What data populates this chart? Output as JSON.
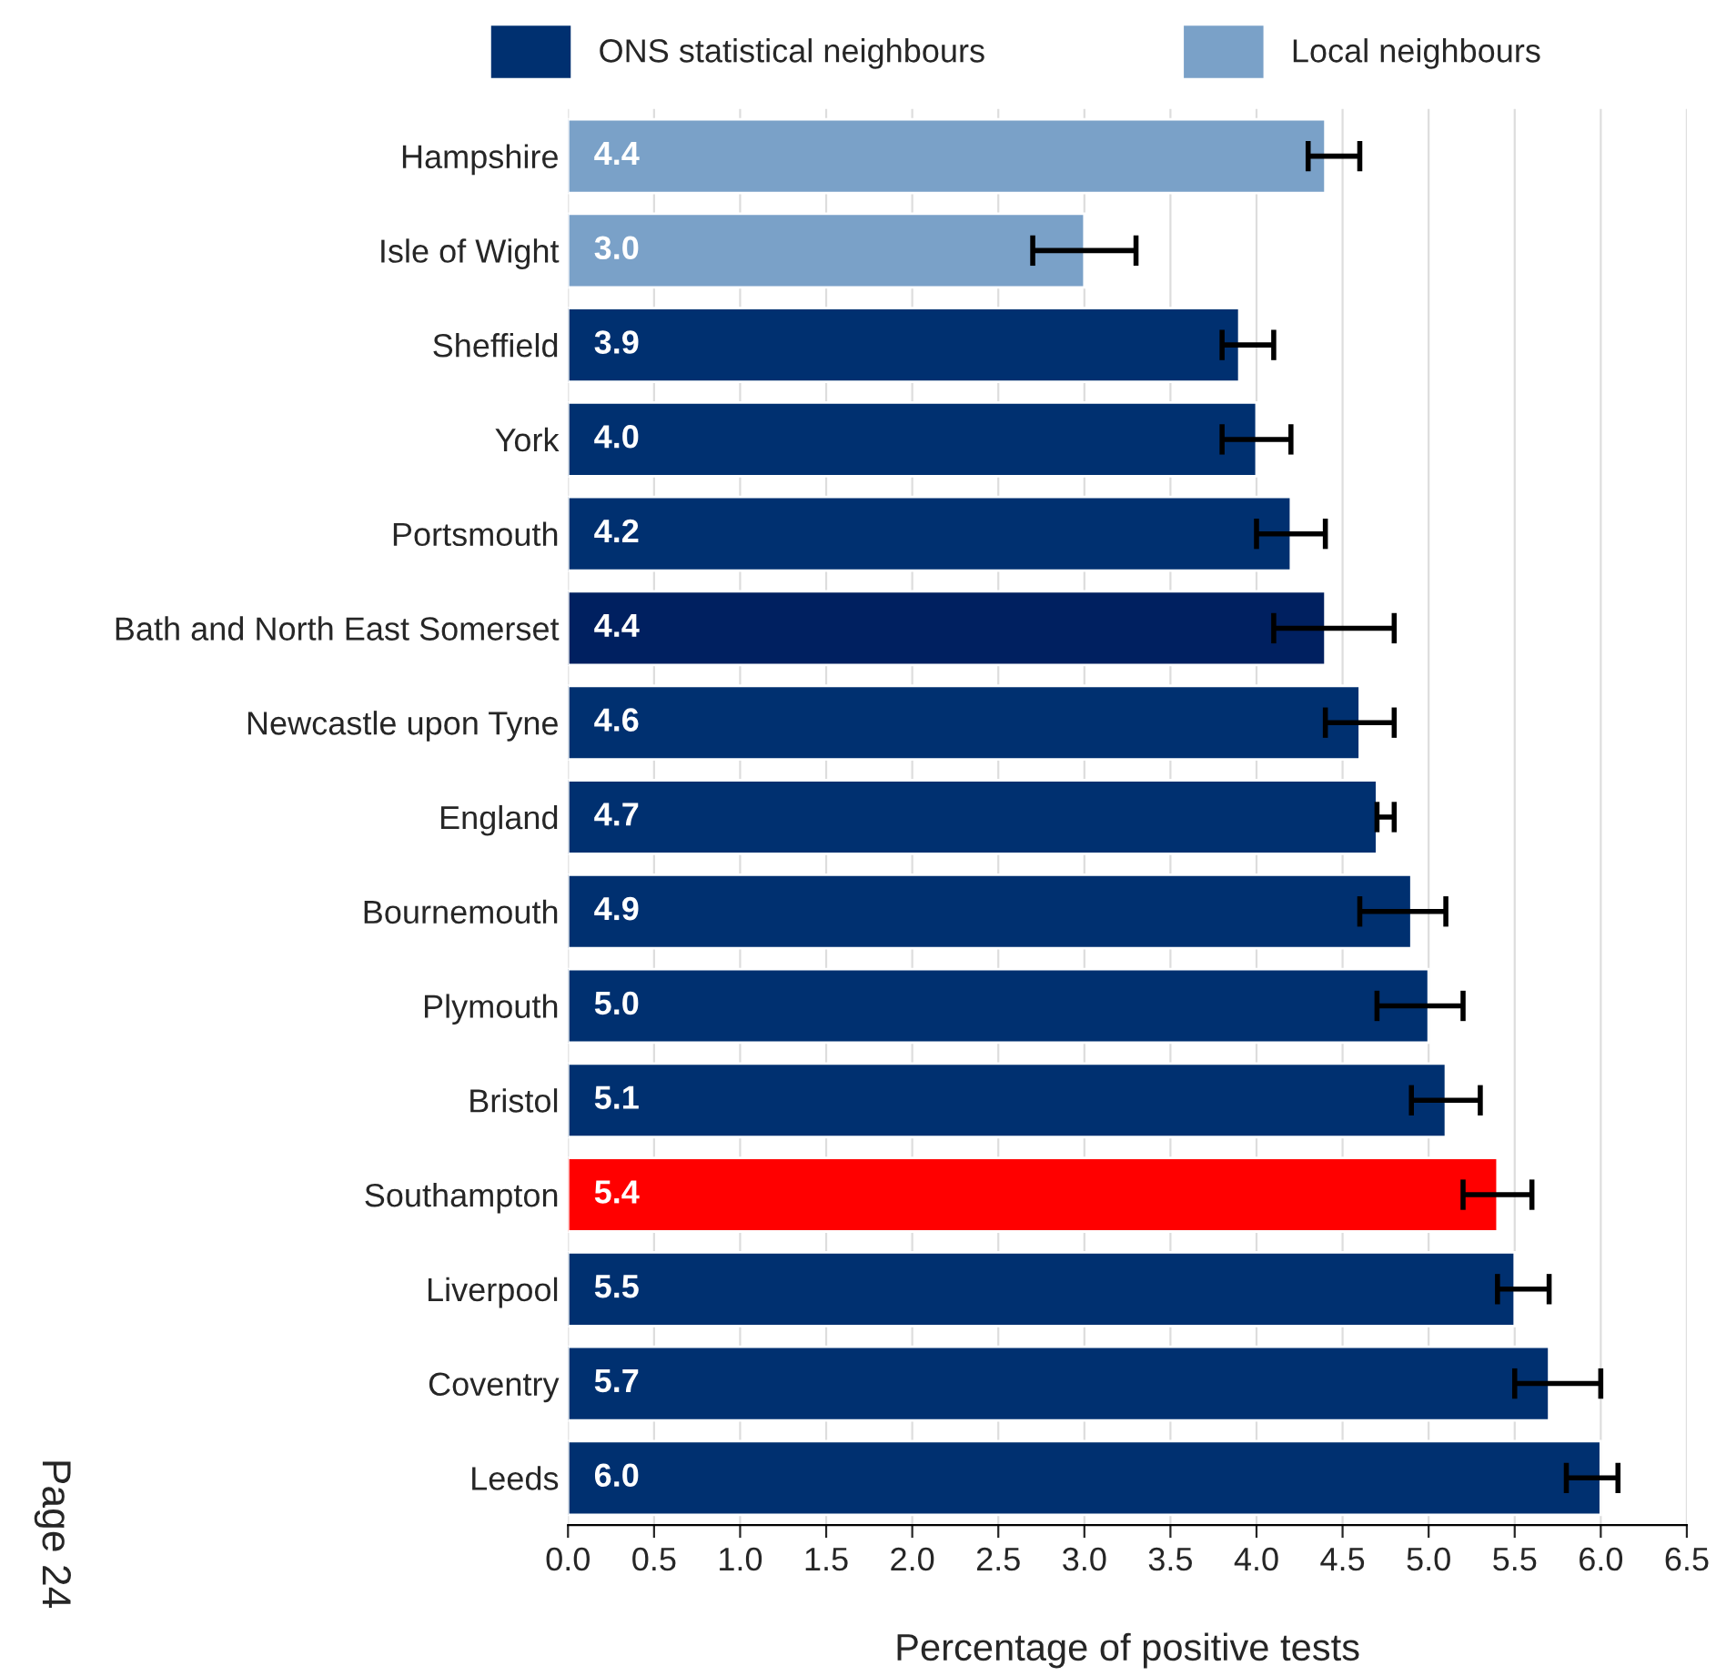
{
  "chart_data": {
    "type": "bar",
    "orientation": "horizontal",
    "xlabel": "Percentage of positive tests",
    "categories": [
      "Hampshire",
      "Isle of Wight",
      "Sheffield",
      "York",
      "Portsmouth",
      "Bath and North East Somerset",
      "Newcastle upon Tyne",
      "England",
      "Bournemouth",
      "Plymouth",
      "Bristol",
      "Southampton",
      "Liverpool",
      "Coventry",
      "Leeds"
    ],
    "series": [
      {
        "name": "ONS statistical neighbours",
        "color": "#003070",
        "colors": [
          null,
          null,
          "#003070",
          "#003070",
          "#003070",
          "#002060",
          "#003070",
          "#003070",
          "#003070",
          "#003070",
          "#003070",
          "#ff0000",
          "#003070",
          "#003070",
          "#003070"
        ],
        "values": [
          null,
          null,
          3.9,
          4.0,
          4.2,
          4.4,
          4.6,
          4.7,
          4.9,
          5.0,
          5.1,
          5.4,
          5.5,
          5.7,
          6.0
        ],
        "value_labels": [
          null,
          null,
          "3.9",
          "4.0",
          "4.2",
          "4.4",
          "4.6",
          "4.7",
          "4.9",
          "5.0",
          "5.1",
          "5.4",
          "5.5",
          "5.7",
          "6.0"
        ],
        "errors": [
          null,
          null,
          [
            3.8,
            4.1
          ],
          [
            3.8,
            4.2
          ],
          [
            4.0,
            4.4
          ],
          [
            4.1,
            4.8
          ],
          [
            4.4,
            4.8
          ],
          [
            4.7,
            4.8
          ],
          [
            4.6,
            5.1
          ],
          [
            4.7,
            5.2
          ],
          [
            4.9,
            5.3
          ],
          [
            5.2,
            5.6
          ],
          [
            5.4,
            5.7
          ],
          [
            5.5,
            6.0
          ],
          [
            5.8,
            6.1
          ]
        ]
      },
      {
        "name": "Local neighbours",
        "color": "#7aa1c8",
        "values": [
          4.4,
          3.0,
          null,
          null,
          null,
          null,
          null,
          null,
          null,
          null,
          null,
          null,
          null,
          null,
          null
        ],
        "value_labels": [
          "4.4",
          "3.0",
          null,
          null,
          null,
          null,
          null,
          null,
          null,
          null,
          null,
          null,
          null,
          null,
          null
        ],
        "errors": [
          [
            4.3,
            4.6
          ],
          [
            2.7,
            3.3
          ],
          null,
          null,
          null,
          null,
          null,
          null,
          null,
          null,
          null,
          null,
          null,
          null,
          null
        ]
      }
    ],
    "xlim": [
      0,
      6.5
    ],
    "xticks": [
      {
        "value": 0,
        "label": "0.0"
      },
      {
        "value": 0.5,
        "label": "0.5"
      },
      {
        "value": 1,
        "label": "1.0"
      },
      {
        "value": 1.5,
        "label": "1.5"
      },
      {
        "value": 2,
        "label": "2.0"
      },
      {
        "value": 2.5,
        "label": "2.5"
      },
      {
        "value": 3,
        "label": "3.0"
      },
      {
        "value": 3.5,
        "label": "3.5"
      },
      {
        "value": 4,
        "label": "4.0"
      },
      {
        "value": 4.5,
        "label": "4.5"
      },
      {
        "value": 5,
        "label": "5.0"
      },
      {
        "value": 5.5,
        "label": "5.5"
      },
      {
        "value": 6,
        "label": "6.0"
      },
      {
        "value": 6.5,
        "label": "6.5"
      }
    ],
    "grid": "x",
    "legend": "top",
    "annotations": [
      "Page 24"
    ]
  }
}
